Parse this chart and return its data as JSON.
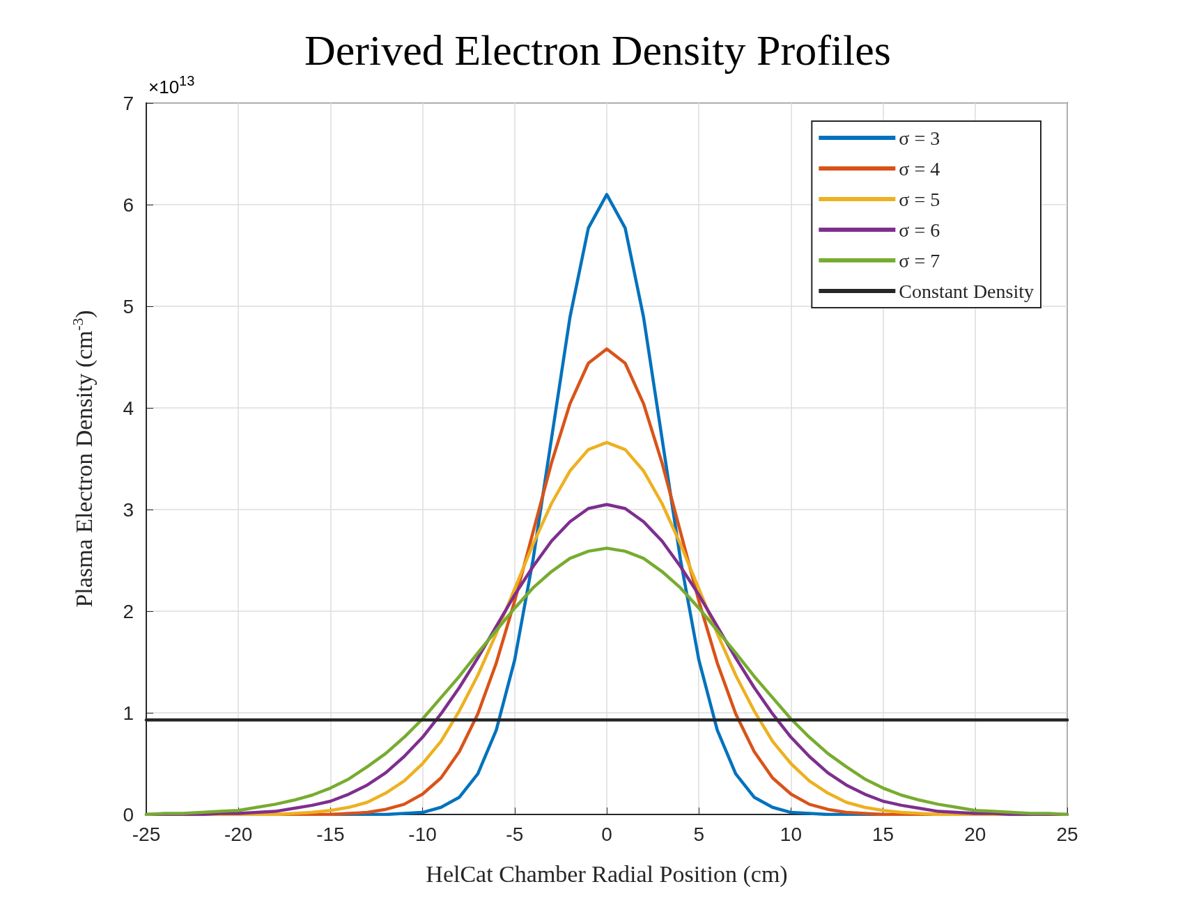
{
  "chart_data": {
    "type": "line",
    "title": "Derived Electron Density Profiles",
    "xlabel": "HelCat Chamber Radial Position (cm)",
    "ylabel": "Plasma Electron Density (cm$^{-3}$)",
    "annotations": [
      "×10$^{13}$"
    ],
    "x": [
      -25,
      -24,
      -23,
      -22,
      -21,
      -20,
      -19,
      -18,
      -17,
      -16,
      -15,
      -14,
      -13,
      -12,
      -11,
      -10,
      -9,
      -8,
      -7,
      -6,
      -5,
      -4,
      -3,
      -2,
      -1,
      0,
      1,
      2,
      3,
      4,
      5,
      6,
      7,
      8,
      9,
      10,
      11,
      12,
      13,
      14,
      15,
      16,
      17,
      18,
      19,
      20,
      21,
      22,
      23,
      24,
      25
    ],
    "series": [
      {
        "name": "σ = 3",
        "color": "#0072bd",
        "values": [
          null,
          null,
          null,
          null,
          null,
          null,
          null,
          null,
          null,
          null,
          0,
          0,
          0,
          0,
          0.01,
          0.02,
          0.07,
          0.17,
          0.4,
          0.83,
          1.52,
          2.51,
          3.7,
          4.89,
          5.77,
          6.1,
          5.77,
          4.89,
          3.7,
          2.51,
          1.52,
          0.83,
          0.4,
          0.17,
          0.07,
          0.02,
          0.01,
          0,
          0,
          0,
          0,
          null,
          null,
          null,
          null,
          null,
          null,
          null,
          null,
          null,
          null
        ]
      },
      {
        "name": "σ = 4",
        "color": "#d95319",
        "values": [
          null,
          null,
          0,
          0,
          0,
          0,
          0,
          0,
          0,
          0,
          0,
          0.01,
          0.02,
          0.05,
          0.1,
          0.2,
          0.36,
          0.62,
          0.99,
          1.49,
          2.1,
          2.78,
          3.46,
          4.04,
          4.44,
          4.58,
          4.44,
          4.04,
          3.46,
          2.78,
          2.1,
          1.49,
          0.99,
          0.62,
          0.36,
          0.2,
          0.1,
          0.05,
          0.02,
          0.01,
          0,
          0,
          0,
          0,
          0,
          0,
          0,
          0,
          0,
          null,
          null
        ]
      },
      {
        "name": "σ = 5",
        "color": "#edb120",
        "values": [
          null,
          null,
          0,
          0,
          0,
          0,
          0,
          0,
          0.01,
          0.02,
          0.04,
          0.07,
          0.12,
          0.21,
          0.33,
          0.5,
          0.72,
          1.02,
          1.37,
          1.78,
          2.22,
          2.66,
          3.06,
          3.38,
          3.59,
          3.66,
          3.59,
          3.38,
          3.06,
          2.66,
          2.22,
          1.78,
          1.37,
          1.02,
          0.72,
          0.5,
          0.33,
          0.21,
          0.12,
          0.07,
          0.04,
          0.02,
          0.01,
          0,
          0,
          0,
          0,
          0,
          0,
          null,
          null
        ]
      },
      {
        "name": "σ = 6",
        "color": "#7e2f8e",
        "values": [
          0,
          0,
          0,
          0,
          0.01,
          0.01,
          0.02,
          0.03,
          0.06,
          0.09,
          0.13,
          0.2,
          0.29,
          0.41,
          0.57,
          0.76,
          0.99,
          1.25,
          1.54,
          1.85,
          2.16,
          2.44,
          2.69,
          2.88,
          3.01,
          3.05,
          3.01,
          2.88,
          2.69,
          2.44,
          2.16,
          1.85,
          1.54,
          1.25,
          0.99,
          0.76,
          0.57,
          0.41,
          0.29,
          0.2,
          0.13,
          0.09,
          0.06,
          0.03,
          0.02,
          0.01,
          0.01,
          0,
          0,
          0,
          0
        ]
      },
      {
        "name": "σ = 7",
        "color": "#77ac30",
        "values": [
          0,
          0.01,
          0.01,
          0.02,
          0.03,
          0.04,
          0.07,
          0.1,
          0.14,
          0.19,
          0.26,
          0.35,
          0.47,
          0.6,
          0.76,
          0.94,
          1.15,
          1.36,
          1.59,
          1.81,
          2.03,
          2.23,
          2.39,
          2.52,
          2.59,
          2.62,
          2.59,
          2.52,
          2.39,
          2.23,
          2.03,
          1.81,
          1.59,
          1.36,
          1.15,
          0.94,
          0.76,
          0.6,
          0.47,
          0.35,
          0.26,
          0.19,
          0.14,
          0.1,
          0.07,
          0.04,
          0.03,
          0.02,
          0.01,
          0.01,
          0
        ]
      },
      {
        "name": "Constant Density",
        "color": "#262626",
        "x": [
          -25,
          25
        ],
        "values": [
          0.93,
          0.93
        ]
      }
    ],
    "xlim": [
      -25,
      25
    ],
    "xticks": [
      -25,
      -20,
      -15,
      -10,
      -5,
      0,
      5,
      10,
      15,
      20,
      25
    ],
    "ylim": [
      0,
      7
    ],
    "yticks": [
      0,
      1,
      2,
      3,
      4,
      5,
      6,
      7
    ],
    "grid": true,
    "legend": "top right",
    "marker": "none",
    "line_style": "solid"
  }
}
